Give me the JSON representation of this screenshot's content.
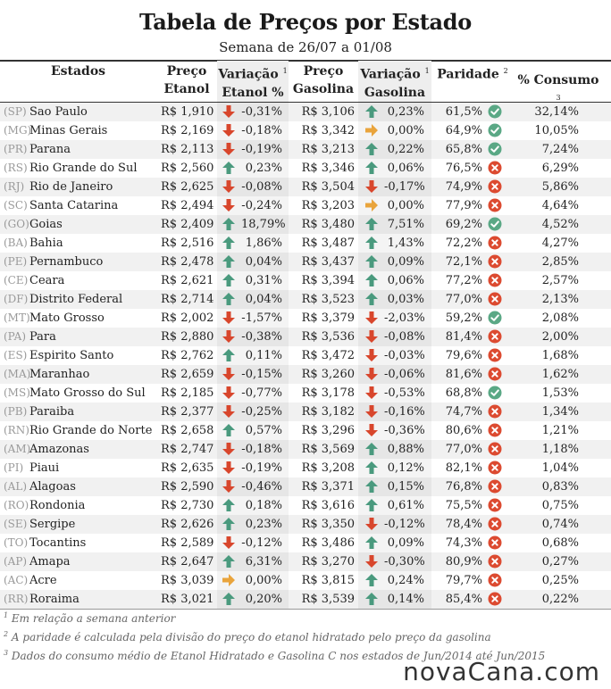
{
  "title": "Tabela de Preços por Estado",
  "subtitle": "Semana de 26/07 a 01/08",
  "headers": {
    "estados": "Estados",
    "preco_etanol_1": "Preço",
    "preco_etanol_2": "Etanol",
    "var_etanol_1": "Variação",
    "var_etanol_2": "Etanol %",
    "preco_gasolina_1": "Preço",
    "preco_gasolina_2": "Gasolina",
    "var_gasolina_1": "Variação",
    "var_gasolina_2": "Gasolina %",
    "paridade": "Paridade",
    "consumo": "% Consumo",
    "sup1": "1",
    "sup2": "2",
    "sup3": "3"
  },
  "colors": {
    "up": "#4a9a7e",
    "down": "#d8462c",
    "flat": "#e9a43c",
    "ok": "#5aa885",
    "bad": "#dc4a30"
  },
  "rows": [
    {
      "uf": "(SP)",
      "estado": "Sao Paulo",
      "etanol": "R$ 1,910",
      "ev_dir": "down",
      "ev": "-0,31%",
      "gasolina": "R$ 3,106",
      "gv_dir": "up",
      "gv": "0,23%",
      "paridade": "61,5%",
      "par_ok": true,
      "consumo": "32,14%"
    },
    {
      "uf": "(MG)",
      "estado": "Minas Gerais",
      "etanol": "R$ 2,169",
      "ev_dir": "down",
      "ev": "-0,18%",
      "gasolina": "R$ 3,342",
      "gv_dir": "flat",
      "gv": "0,00%",
      "paridade": "64,9%",
      "par_ok": true,
      "consumo": "10,05%"
    },
    {
      "uf": "(PR)",
      "estado": "Parana",
      "etanol": "R$ 2,113",
      "ev_dir": "down",
      "ev": "-0,19%",
      "gasolina": "R$ 3,213",
      "gv_dir": "up",
      "gv": "0,22%",
      "paridade": "65,8%",
      "par_ok": true,
      "consumo": "7,24%"
    },
    {
      "uf": "(RS)",
      "estado": "Rio Grande do Sul",
      "etanol": "R$ 2,560",
      "ev_dir": "up",
      "ev": "0,23%",
      "gasolina": "R$ 3,346",
      "gv_dir": "up",
      "gv": "0,06%",
      "paridade": "76,5%",
      "par_ok": false,
      "consumo": "6,29%"
    },
    {
      "uf": "(RJ)",
      "estado": "Rio de Janeiro",
      "etanol": "R$ 2,625",
      "ev_dir": "down",
      "ev": "-0,08%",
      "gasolina": "R$ 3,504",
      "gv_dir": "down",
      "gv": "-0,17%",
      "paridade": "74,9%",
      "par_ok": false,
      "consumo": "5,86%"
    },
    {
      "uf": "(SC)",
      "estado": "Santa Catarina",
      "etanol": "R$ 2,494",
      "ev_dir": "down",
      "ev": "-0,24%",
      "gasolina": "R$ 3,203",
      "gv_dir": "flat",
      "gv": "0,00%",
      "paridade": "77,9%",
      "par_ok": false,
      "consumo": "4,64%"
    },
    {
      "uf": "(GO)",
      "estado": "Goias",
      "etanol": "R$ 2,409",
      "ev_dir": "up",
      "ev": "18,79%",
      "gasolina": "R$ 3,480",
      "gv_dir": "up",
      "gv": "7,51%",
      "paridade": "69,2%",
      "par_ok": true,
      "consumo": "4,52%"
    },
    {
      "uf": "(BA)",
      "estado": "Bahia",
      "etanol": "R$ 2,516",
      "ev_dir": "up",
      "ev": "1,86%",
      "gasolina": "R$ 3,487",
      "gv_dir": "up",
      "gv": "1,43%",
      "paridade": "72,2%",
      "par_ok": false,
      "consumo": "4,27%"
    },
    {
      "uf": "(PE)",
      "estado": "Pernambuco",
      "etanol": "R$ 2,478",
      "ev_dir": "up",
      "ev": "0,04%",
      "gasolina": "R$ 3,437",
      "gv_dir": "up",
      "gv": "0,09%",
      "paridade": "72,1%",
      "par_ok": false,
      "consumo": "2,85%"
    },
    {
      "uf": "(CE)",
      "estado": "Ceara",
      "etanol": "R$ 2,621",
      "ev_dir": "up",
      "ev": "0,31%",
      "gasolina": "R$ 3,394",
      "gv_dir": "up",
      "gv": "0,06%",
      "paridade": "77,2%",
      "par_ok": false,
      "consumo": "2,57%"
    },
    {
      "uf": "(DF)",
      "estado": "Distrito Federal",
      "etanol": "R$ 2,714",
      "ev_dir": "up",
      "ev": "0,04%",
      "gasolina": "R$ 3,523",
      "gv_dir": "up",
      "gv": "0,03%",
      "paridade": "77,0%",
      "par_ok": false,
      "consumo": "2,13%"
    },
    {
      "uf": "(MT)",
      "estado": "Mato Grosso",
      "etanol": "R$ 2,002",
      "ev_dir": "down",
      "ev": "-1,57%",
      "gasolina": "R$ 3,379",
      "gv_dir": "down",
      "gv": "-2,03%",
      "paridade": "59,2%",
      "par_ok": true,
      "consumo": "2,08%"
    },
    {
      "uf": "(PA)",
      "estado": "Para",
      "etanol": "R$ 2,880",
      "ev_dir": "down",
      "ev": "-0,38%",
      "gasolina": "R$ 3,536",
      "gv_dir": "down",
      "gv": "-0,08%",
      "paridade": "81,4%",
      "par_ok": false,
      "consumo": "2,00%"
    },
    {
      "uf": "(ES)",
      "estado": "Espirito Santo",
      "etanol": "R$ 2,762",
      "ev_dir": "up",
      "ev": "0,11%",
      "gasolina": "R$ 3,472",
      "gv_dir": "down",
      "gv": "-0,03%",
      "paridade": "79,6%",
      "par_ok": false,
      "consumo": "1,68%"
    },
    {
      "uf": "(MA)",
      "estado": "Maranhao",
      "etanol": "R$ 2,659",
      "ev_dir": "down",
      "ev": "-0,15%",
      "gasolina": "R$ 3,260",
      "gv_dir": "down",
      "gv": "-0,06%",
      "paridade": "81,6%",
      "par_ok": false,
      "consumo": "1,62%"
    },
    {
      "uf": "(MS)",
      "estado": "Mato Grosso do Sul",
      "etanol": "R$ 2,185",
      "ev_dir": "down",
      "ev": "-0,77%",
      "gasolina": "R$ 3,178",
      "gv_dir": "down",
      "gv": "-0,53%",
      "paridade": "68,8%",
      "par_ok": true,
      "consumo": "1,53%"
    },
    {
      "uf": "(PB)",
      "estado": "Paraiba",
      "etanol": "R$ 2,377",
      "ev_dir": "down",
      "ev": "-0,25%",
      "gasolina": "R$ 3,182",
      "gv_dir": "down",
      "gv": "-0,16%",
      "paridade": "74,7%",
      "par_ok": false,
      "consumo": "1,34%"
    },
    {
      "uf": "(RN)",
      "estado": "Rio Grande do Norte",
      "etanol": "R$ 2,658",
      "ev_dir": "up",
      "ev": "0,57%",
      "gasolina": "R$ 3,296",
      "gv_dir": "down",
      "gv": "-0,36%",
      "paridade": "80,6%",
      "par_ok": false,
      "consumo": "1,21%"
    },
    {
      "uf": "(AM)",
      "estado": "Amazonas",
      "etanol": "R$ 2,747",
      "ev_dir": "down",
      "ev": "-0,18%",
      "gasolina": "R$ 3,569",
      "gv_dir": "up",
      "gv": "0,88%",
      "paridade": "77,0%",
      "par_ok": false,
      "consumo": "1,18%"
    },
    {
      "uf": "(PI)",
      "estado": "Piaui",
      "etanol": "R$ 2,635",
      "ev_dir": "down",
      "ev": "-0,19%",
      "gasolina": "R$ 3,208",
      "gv_dir": "up",
      "gv": "0,12%",
      "paridade": "82,1%",
      "par_ok": false,
      "consumo": "1,04%"
    },
    {
      "uf": "(AL)",
      "estado": "Alagoas",
      "etanol": "R$ 2,590",
      "ev_dir": "down",
      "ev": "-0,46%",
      "gasolina": "R$ 3,371",
      "gv_dir": "up",
      "gv": "0,15%",
      "paridade": "76,8%",
      "par_ok": false,
      "consumo": "0,83%"
    },
    {
      "uf": "(RO)",
      "estado": "Rondonia",
      "etanol": "R$ 2,730",
      "ev_dir": "up",
      "ev": "0,18%",
      "gasolina": "R$ 3,616",
      "gv_dir": "up",
      "gv": "0,61%",
      "paridade": "75,5%",
      "par_ok": false,
      "consumo": "0,75%"
    },
    {
      "uf": "(SE)",
      "estado": "Sergipe",
      "etanol": "R$ 2,626",
      "ev_dir": "up",
      "ev": "0,23%",
      "gasolina": "R$ 3,350",
      "gv_dir": "down",
      "gv": "-0,12%",
      "paridade": "78,4%",
      "par_ok": false,
      "consumo": "0,74%"
    },
    {
      "uf": "(TO)",
      "estado": "Tocantins",
      "etanol": "R$ 2,589",
      "ev_dir": "down",
      "ev": "-0,12%",
      "gasolina": "R$ 3,486",
      "gv_dir": "up",
      "gv": "0,09%",
      "paridade": "74,3%",
      "par_ok": false,
      "consumo": "0,68%"
    },
    {
      "uf": "(AP)",
      "estado": "Amapa",
      "etanol": "R$ 2,647",
      "ev_dir": "up",
      "ev": "6,31%",
      "gasolina": "R$ 3,270",
      "gv_dir": "down",
      "gv": "-0,30%",
      "paridade": "80,9%",
      "par_ok": false,
      "consumo": "0,27%"
    },
    {
      "uf": "(AC)",
      "estado": "Acre",
      "etanol": "R$ 3,039",
      "ev_dir": "flat",
      "ev": "0,00%",
      "gasolina": "R$ 3,815",
      "gv_dir": "up",
      "gv": "0,24%",
      "paridade": "79,7%",
      "par_ok": false,
      "consumo": "0,25%"
    },
    {
      "uf": "(RR)",
      "estado": "Roraima",
      "etanol": "R$ 3,021",
      "ev_dir": "up",
      "ev": "0,20%",
      "gasolina": "R$ 3,539",
      "gv_dir": "up",
      "gv": "0,14%",
      "paridade": "85,4%",
      "par_ok": false,
      "consumo": "0,22%"
    }
  ],
  "notes": [
    {
      "sup": "1",
      "text": "Em relação a semana anterior"
    },
    {
      "sup": "2",
      "text": "A paridade é calculada pela divisão do preço do etanol hidratado pelo preço da gasolina"
    },
    {
      "sup": "3",
      "text": "Dados do consumo médio de Etanol Hidratado e Gasolina C nos estados de Jun/2014 até Jun/2015"
    }
  ],
  "logo": "novaCana.com"
}
